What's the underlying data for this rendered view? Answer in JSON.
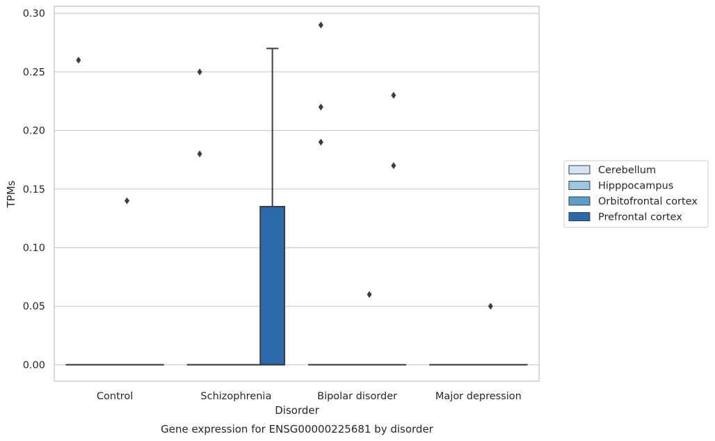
{
  "chart_data": {
    "type": "box",
    "title": "",
    "caption": "Gene expression for ENSG00000225681 by disorder",
    "xlabel": "Disorder",
    "ylabel": "TPMs",
    "ylim": [
      -0.014,
      0.306
    ],
    "yticks": [
      0.0,
      0.05,
      0.1,
      0.15,
      0.2,
      0.25,
      0.3
    ],
    "ytick_labels": [
      "0.00",
      "0.05",
      "0.10",
      "0.15",
      "0.20",
      "0.25",
      "0.30"
    ],
    "categories": [
      "Control",
      "Schizophrenia",
      "Bipolar disorder",
      "Major depression"
    ],
    "grid": "horizontal",
    "legend_position": "right",
    "series": [
      {
        "name": "Cerebellum",
        "color": "#d4e3f1"
      },
      {
        "name": "Hipppocampus",
        "color": "#9ac8e0"
      },
      {
        "name": "Orbitofrontal cortex",
        "color": "#5a9ec9"
      },
      {
        "name": "Prefrontal cortex",
        "color": "#2b6aa8"
      }
    ],
    "boxes": [
      {
        "category": "Control",
        "series": "Orbitofrontal cortex",
        "q1": 0.0,
        "median": 0.0,
        "q3": 0.0,
        "whisker_low": 0.0,
        "whisker_high": 0.0,
        "outliers": [
          0.14
        ]
      },
      {
        "category": "Control",
        "series": "Prefrontal cortex",
        "q1": 0.0,
        "median": 0.0,
        "q3": 0.0,
        "whisker_low": 0.0,
        "whisker_high": 0.0,
        "outliers": []
      },
      {
        "category": "Control",
        "series": "Cerebellum",
        "q1": 0.0,
        "median": 0.0,
        "q3": 0.0,
        "whisker_low": 0.0,
        "whisker_high": 0.0,
        "outliers": [
          0.26
        ]
      },
      {
        "category": "Control",
        "series": "Hipppocampus",
        "q1": 0.0,
        "median": 0.0,
        "q3": 0.0,
        "whisker_low": 0.0,
        "whisker_high": 0.0,
        "outliers": []
      },
      {
        "category": "Schizophrenia",
        "series": "Cerebellum",
        "q1": 0.0,
        "median": 0.0,
        "q3": 0.0,
        "whisker_low": 0.0,
        "whisker_high": 0.0,
        "outliers": [
          0.25,
          0.18
        ]
      },
      {
        "category": "Schizophrenia",
        "series": "Hipppocampus",
        "q1": 0.0,
        "median": 0.0,
        "q3": 0.0,
        "whisker_low": 0.0,
        "whisker_high": 0.0,
        "outliers": []
      },
      {
        "category": "Schizophrenia",
        "series": "Orbitofrontal cortex",
        "q1": 0.0,
        "median": 0.0,
        "q3": 0.0,
        "whisker_low": 0.0,
        "whisker_high": 0.0,
        "outliers": []
      },
      {
        "category": "Schizophrenia",
        "series": "Prefrontal cortex",
        "q1": 0.0,
        "median": 0.0,
        "q3": 0.135,
        "whisker_low": 0.0,
        "whisker_high": 0.27,
        "outliers": []
      },
      {
        "category": "Bipolar disorder",
        "series": "Cerebellum",
        "q1": 0.0,
        "median": 0.0,
        "q3": 0.0,
        "whisker_low": 0.0,
        "whisker_high": 0.0,
        "outliers": [
          0.29,
          0.22,
          0.19
        ]
      },
      {
        "category": "Bipolar disorder",
        "series": "Hipppocampus",
        "q1": 0.0,
        "median": 0.0,
        "q3": 0.0,
        "whisker_low": 0.0,
        "whisker_high": 0.0,
        "outliers": []
      },
      {
        "category": "Bipolar disorder",
        "series": "Orbitofrontal cortex",
        "q1": 0.0,
        "median": 0.0,
        "q3": 0.0,
        "whisker_low": 0.0,
        "whisker_high": 0.0,
        "outliers": [
          0.06
        ]
      },
      {
        "category": "Bipolar disorder",
        "series": "Prefrontal cortex",
        "q1": 0.0,
        "median": 0.0,
        "q3": 0.0,
        "whisker_low": 0.0,
        "whisker_high": 0.0,
        "outliers": [
          0.23,
          0.17
        ]
      },
      {
        "category": "Major depression",
        "series": "Cerebellum",
        "q1": 0.0,
        "median": 0.0,
        "q3": 0.0,
        "whisker_low": 0.0,
        "whisker_high": 0.0,
        "outliers": []
      },
      {
        "category": "Major depression",
        "series": "Hipppocampus",
        "q1": 0.0,
        "median": 0.0,
        "q3": 0.0,
        "whisker_low": 0.0,
        "whisker_high": 0.0,
        "outliers": []
      },
      {
        "category": "Major depression",
        "series": "Orbitofrontal cortex",
        "q1": 0.0,
        "median": 0.0,
        "q3": 0.0,
        "whisker_low": 0.0,
        "whisker_high": 0.0,
        "outliers": [
          0.05
        ]
      },
      {
        "category": "Major depression",
        "series": "Prefrontal cortex",
        "q1": 0.0,
        "median": 0.0,
        "q3": 0.0,
        "whisker_low": 0.0,
        "whisker_high": 0.0,
        "outliers": []
      }
    ]
  }
}
